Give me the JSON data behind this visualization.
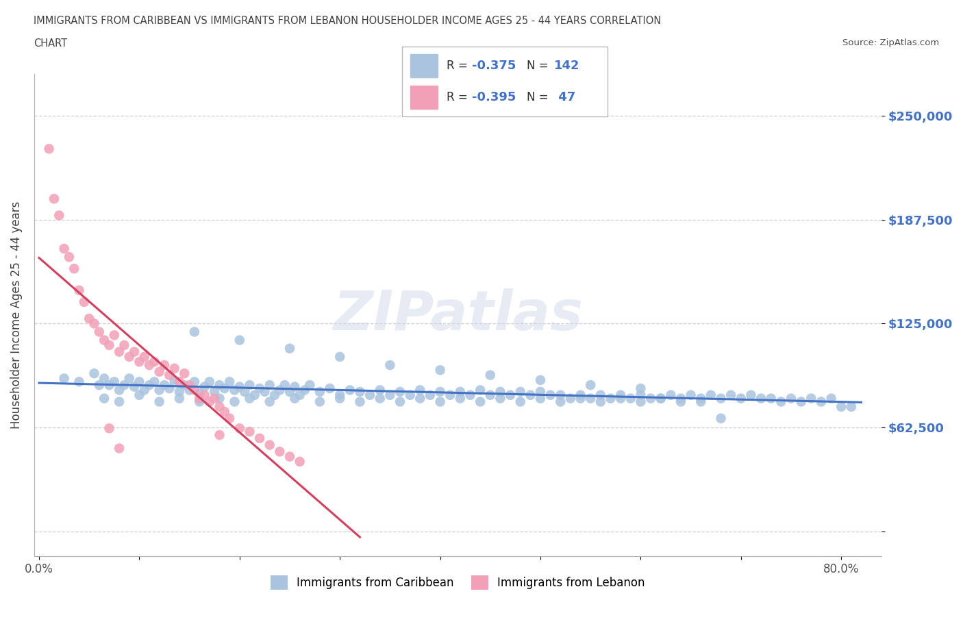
{
  "title_line1": "IMMIGRANTS FROM CARIBBEAN VS IMMIGRANTS FROM LEBANON HOUSEHOLDER INCOME AGES 25 - 44 YEARS CORRELATION",
  "title_line2": "CHART",
  "source": "Source: ZipAtlas.com",
  "ylabel": "Householder Income Ages 25 - 44 years",
  "xlim": [
    -0.005,
    0.84
  ],
  "ylim": [
    -15000,
    275000
  ],
  "yticks": [
    0,
    62500,
    125000,
    187500,
    250000
  ],
  "ytick_labels": [
    "",
    "$62,500",
    "$125,000",
    "$187,500",
    "$250,000"
  ],
  "xticks": [
    0.0,
    0.1,
    0.2,
    0.3,
    0.4,
    0.5,
    0.6,
    0.7,
    0.8
  ],
  "xtick_labels": [
    "0.0%",
    "",
    "",
    "",
    "",
    "",
    "",
    "",
    "80.0%"
  ],
  "watermark": "ZIPatlas",
  "blue_color": "#aac4df",
  "pink_color": "#f2a0b8",
  "blue_line_color": "#4472c4",
  "pink_line_color": "#d04060",
  "grid_color": "#d0d0d0",
  "blue_r": "-0.375",
  "blue_n": "142",
  "pink_r": "-0.395",
  "pink_n": "47",
  "blue_scatter_x": [
    0.025,
    0.04,
    0.055,
    0.06,
    0.065,
    0.07,
    0.075,
    0.08,
    0.085,
    0.09,
    0.095,
    0.1,
    0.105,
    0.11,
    0.115,
    0.12,
    0.125,
    0.13,
    0.135,
    0.14,
    0.145,
    0.15,
    0.155,
    0.16,
    0.165,
    0.17,
    0.175,
    0.18,
    0.185,
    0.19,
    0.195,
    0.2,
    0.205,
    0.21,
    0.215,
    0.22,
    0.225,
    0.23,
    0.235,
    0.24,
    0.245,
    0.25,
    0.255,
    0.26,
    0.265,
    0.27,
    0.28,
    0.29,
    0.3,
    0.31,
    0.32,
    0.33,
    0.34,
    0.35,
    0.36,
    0.37,
    0.38,
    0.39,
    0.4,
    0.41,
    0.42,
    0.43,
    0.44,
    0.45,
    0.46,
    0.47,
    0.48,
    0.49,
    0.5,
    0.51,
    0.52,
    0.53,
    0.54,
    0.55,
    0.56,
    0.57,
    0.58,
    0.59,
    0.6,
    0.61,
    0.62,
    0.63,
    0.64,
    0.65,
    0.66,
    0.67,
    0.68,
    0.69,
    0.7,
    0.71,
    0.72,
    0.73,
    0.74,
    0.75,
    0.76,
    0.77,
    0.78,
    0.79,
    0.8,
    0.81,
    0.155,
    0.2,
    0.25,
    0.3,
    0.35,
    0.4,
    0.45,
    0.5,
    0.55,
    0.6,
    0.065,
    0.08,
    0.1,
    0.12,
    0.14,
    0.16,
    0.18,
    0.195,
    0.21,
    0.23,
    0.255,
    0.28,
    0.3,
    0.32,
    0.34,
    0.36,
    0.38,
    0.4,
    0.42,
    0.44,
    0.46,
    0.48,
    0.5,
    0.52,
    0.54,
    0.56,
    0.58,
    0.6,
    0.62,
    0.64,
    0.66,
    0.68
  ],
  "blue_scatter_y": [
    92000,
    90000,
    95000,
    88000,
    92000,
    88000,
    90000,
    85000,
    88000,
    92000,
    87000,
    90000,
    85000,
    88000,
    90000,
    85000,
    88000,
    86000,
    90000,
    84000,
    88000,
    85000,
    90000,
    83000,
    87000,
    90000,
    84000,
    88000,
    86000,
    90000,
    85000,
    87000,
    84000,
    88000,
    82000,
    86000,
    84000,
    88000,
    82000,
    85000,
    88000,
    84000,
    87000,
    82000,
    85000,
    88000,
    84000,
    86000,
    82000,
    85000,
    84000,
    82000,
    85000,
    82000,
    84000,
    82000,
    85000,
    82000,
    84000,
    82000,
    84000,
    82000,
    85000,
    82000,
    84000,
    82000,
    84000,
    82000,
    84000,
    82000,
    82000,
    80000,
    82000,
    80000,
    82000,
    80000,
    82000,
    80000,
    82000,
    80000,
    80000,
    82000,
    80000,
    82000,
    80000,
    82000,
    80000,
    82000,
    80000,
    82000,
    80000,
    80000,
    78000,
    80000,
    78000,
    80000,
    78000,
    80000,
    75000,
    75000,
    120000,
    115000,
    110000,
    105000,
    100000,
    97000,
    94000,
    91000,
    88000,
    86000,
    80000,
    78000,
    82000,
    78000,
    80000,
    78000,
    80000,
    78000,
    80000,
    78000,
    80000,
    78000,
    80000,
    78000,
    80000,
    78000,
    80000,
    78000,
    80000,
    78000,
    80000,
    78000,
    80000,
    78000,
    80000,
    78000,
    80000,
    78000,
    80000,
    78000,
    78000,
    68000
  ],
  "pink_scatter_x": [
    0.01,
    0.015,
    0.02,
    0.025,
    0.03,
    0.035,
    0.04,
    0.045,
    0.05,
    0.055,
    0.06,
    0.065,
    0.07,
    0.075,
    0.08,
    0.085,
    0.09,
    0.095,
    0.1,
    0.105,
    0.11,
    0.115,
    0.12,
    0.125,
    0.13,
    0.135,
    0.14,
    0.145,
    0.15,
    0.155,
    0.16,
    0.165,
    0.17,
    0.175,
    0.18,
    0.185,
    0.19,
    0.2,
    0.21,
    0.22,
    0.23,
    0.24,
    0.25,
    0.26,
    0.18,
    0.07,
    0.08
  ],
  "pink_scatter_y": [
    230000,
    200000,
    190000,
    170000,
    165000,
    158000,
    145000,
    138000,
    128000,
    125000,
    120000,
    115000,
    112000,
    118000,
    108000,
    112000,
    105000,
    108000,
    102000,
    105000,
    100000,
    102000,
    96000,
    100000,
    94000,
    98000,
    90000,
    95000,
    88000,
    85000,
    80000,
    82000,
    78000,
    80000,
    75000,
    72000,
    68000,
    62000,
    60000,
    56000,
    52000,
    48000,
    45000,
    42000,
    58000,
    62000,
    50000
  ]
}
